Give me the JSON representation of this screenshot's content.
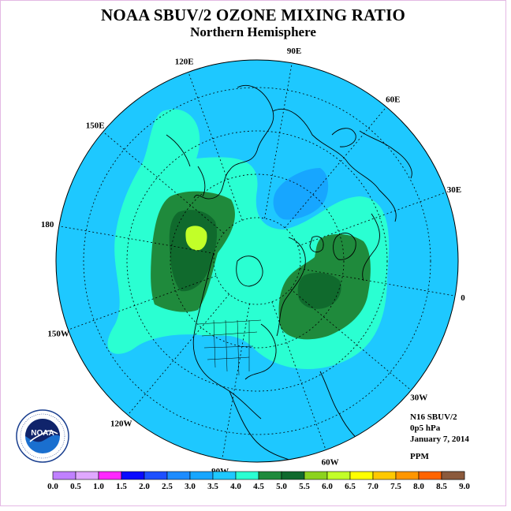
{
  "header": {
    "title": "NOAA SBUV/2 OZONE MIXING RATIO",
    "subtitle": "Northern Hemisphere"
  },
  "map": {
    "projection": "north-polar-stereographic",
    "longitude_labels": [
      "90E",
      "60E",
      "30E",
      "0",
      "30W",
      "60W",
      "90W",
      "120W",
      "150W",
      "180",
      "150E",
      "120E"
    ],
    "fields": [
      {
        "name": "background",
        "range": "3.0-3.5",
        "color": "#1ec8ff"
      },
      {
        "name": "cyan-belt",
        "range": "3.5-4.0",
        "color": "#2affd2"
      },
      {
        "name": "low-arctic",
        "range": "2.5-3.0",
        "color": "#17a6ff"
      },
      {
        "name": "pacific-high",
        "range": "4.0-5.0",
        "color": "#1f8a3c"
      },
      {
        "name": "pacific-core",
        "range": "4.5-5.0",
        "color": "#106a2d"
      },
      {
        "name": "pacific-max",
        "range": "5.5-6.0",
        "color": "#c2ff28"
      },
      {
        "name": "atlantic-high",
        "range": "4.0-5.0",
        "color": "#1f8a3c"
      },
      {
        "name": "atlantic-core",
        "range": "4.5-5.0",
        "color": "#106a2d"
      }
    ]
  },
  "info": {
    "satellite": "N16 SBUV/2",
    "level": "0p5 hPa",
    "date": "January 7, 2014",
    "units": "PPM"
  },
  "logo": {
    "text": "NOAA",
    "ring_text": "NATIONAL OCEANIC AND ATMOSPHERIC ADMINISTRATION • U.S. DEPARTMENT OF COMMERCE"
  },
  "colorbar": {
    "labels": [
      "0.0",
      "0.5",
      "1.0",
      "1.5",
      "2.0",
      "2.5",
      "3.0",
      "3.5",
      "4.0",
      "4.5",
      "5.0",
      "5.5",
      "6.0",
      "6.5",
      "7.0",
      "7.5",
      "8.0",
      "8.5",
      "9.0"
    ],
    "colors": [
      "#c080ff",
      "#e0a8ff",
      "#ff28ff",
      "#0a0aff",
      "#1e50ff",
      "#1e8cff",
      "#17a6ff",
      "#1ec8ff",
      "#2affd2",
      "#1f8a3c",
      "#106a2d",
      "#8cd21e",
      "#c2ff28",
      "#ffff00",
      "#ffc800",
      "#ff9600",
      "#ff6400",
      "#ff0000",
      "#8b5a3c"
    ]
  }
}
